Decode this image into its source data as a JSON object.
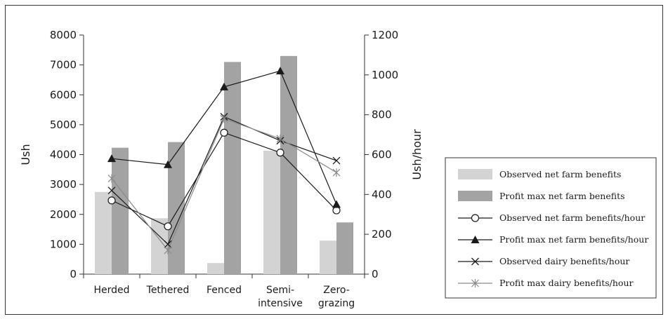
{
  "chart_data": {
    "type": "bar",
    "categories": [
      "Herded",
      "Tethered",
      "Fenced",
      "Semi-\nintensive",
      "Zero-\ngrazing"
    ],
    "ylabel": "Ush",
    "y2label": "Ush/hour",
    "ylim": [
      0,
      8000
    ],
    "y2lim": [
      0,
      1200
    ],
    "yticks": [
      "0",
      "1000",
      "2000",
      "3000",
      "4000",
      "5000",
      "6000",
      "7000",
      "8000"
    ],
    "y2ticks": [
      "0",
      "200",
      "400",
      "600",
      "800",
      "1000",
      "1200"
    ],
    "legend_position": "right",
    "series": [
      {
        "name": "Observed net farm benefits",
        "kind": "bar",
        "axis": "left",
        "color": "#d3d3d3",
        "values": [
          2750,
          1870,
          370,
          4130,
          1120
        ]
      },
      {
        "name": "Profit max net farm benefits",
        "kind": "bar",
        "axis": "left",
        "color": "#a3a3a3",
        "values": [
          4230,
          4420,
          7100,
          7300,
          1730
        ]
      },
      {
        "name": "Observed net farm benefits/hour",
        "kind": "line",
        "axis": "right",
        "marker": "circle",
        "color": "#1a1a1a",
        "values": [
          370,
          240,
          710,
          610,
          320
        ]
      },
      {
        "name": "Profit max net farm benefits/hour",
        "kind": "line",
        "axis": "right",
        "marker": "triangle",
        "color": "#1a1a1a",
        "values": [
          580,
          550,
          940,
          1020,
          350
        ]
      },
      {
        "name": "Observed dairy benefits/hour",
        "kind": "line",
        "axis": "right",
        "marker": "x",
        "color": "#1a1a1a",
        "values": [
          420,
          150,
          790,
          670,
          570
        ]
      },
      {
        "name": "Profit max dairy benefits/hour",
        "kind": "line",
        "axis": "right",
        "marker": "star",
        "color": "#8a8a8a",
        "values": [
          480,
          120,
          780,
          680,
          510
        ]
      }
    ]
  }
}
